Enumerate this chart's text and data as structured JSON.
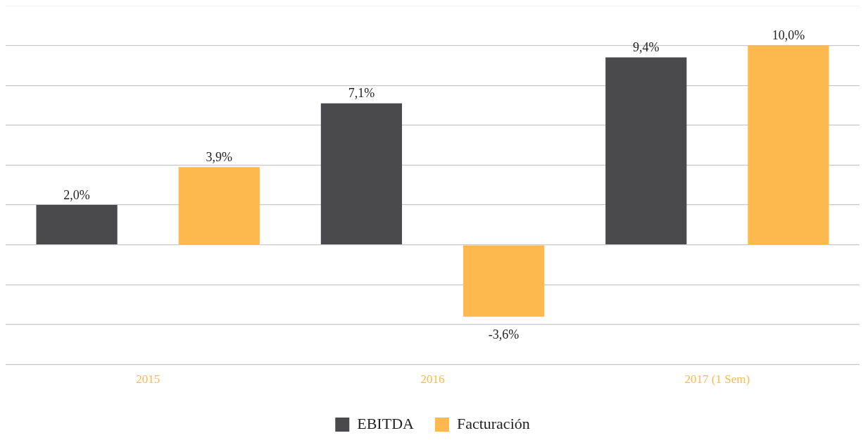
{
  "chart_data": {
    "type": "bar",
    "categories": [
      "2015",
      "2016",
      "2017 (1 Sem)"
    ],
    "series": [
      {
        "name": "EBITDA",
        "color": "#4a4a4c",
        "values": [
          2.0,
          7.1,
          9.4
        ],
        "value_labels": [
          "2,0%",
          "7,1%",
          "9,4%"
        ]
      },
      {
        "name": "Facturación",
        "color": "#fdb94e",
        "values": [
          3.9,
          -3.6,
          10.0
        ],
        "value_labels": [
          "3,9%",
          "-3,6%",
          "10,0%"
        ]
      }
    ],
    "ylim": [
      -6,
      12
    ],
    "yticks": [
      {
        "value": -6,
        "label": null
      },
      {
        "value": -4,
        "label": null
      },
      {
        "value": -2,
        "label": null
      },
      {
        "value": 0,
        "label": null
      },
      {
        "value": 2,
        "label": null
      },
      {
        "value": 4,
        "label": null
      },
      {
        "value": 6,
        "label": null
      },
      {
        "value": 8,
        "label": null
      },
      {
        "value": 10,
        "label": null
      },
      {
        "value": 12,
        "label": null
      }
    ],
    "grid": "y",
    "legend": "bottom",
    "tick_labels": "x"
  }
}
